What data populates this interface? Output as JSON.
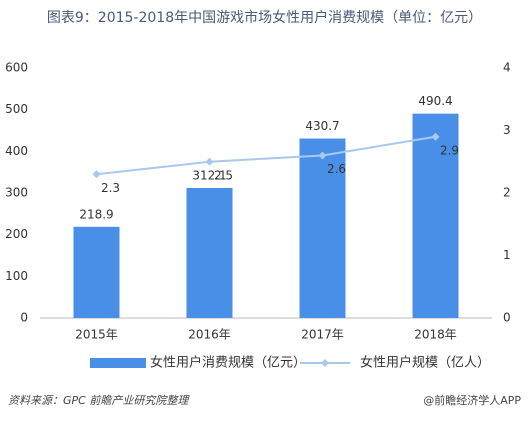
{
  "chart_data": {
    "type": "bar",
    "title": "图表9：2015-2018年中国游戏市场女性用户消费规模（单位：亿元）",
    "categories": [
      "2015年",
      "2016年",
      "2017年",
      "2018年"
    ],
    "series": [
      {
        "name": "女性用户消费规模（亿元）",
        "type": "bar",
        "color": "#4a8fe7",
        "values": [
          218.9,
          312.1,
          430.7,
          490.4
        ]
      },
      {
        "name": "女性用户规模（亿人）",
        "type": "line",
        "axis": "y2",
        "color": "#a9c8ee",
        "values": [
          2.3,
          2.5,
          2.6,
          2.9
        ]
      }
    ],
    "ylim": [
      0,
      600
    ],
    "yticks": [
      0,
      100,
      200,
      300,
      400,
      500,
      600
    ],
    "y2lim": [
      0,
      4
    ],
    "y2ticks": [
      0,
      1,
      2,
      3,
      4
    ],
    "grid": false,
    "legend": "bottom",
    "source": "资料来源：GPC 前瞻产业研究院整理",
    "credit": "@前瞻经济学人APP"
  }
}
